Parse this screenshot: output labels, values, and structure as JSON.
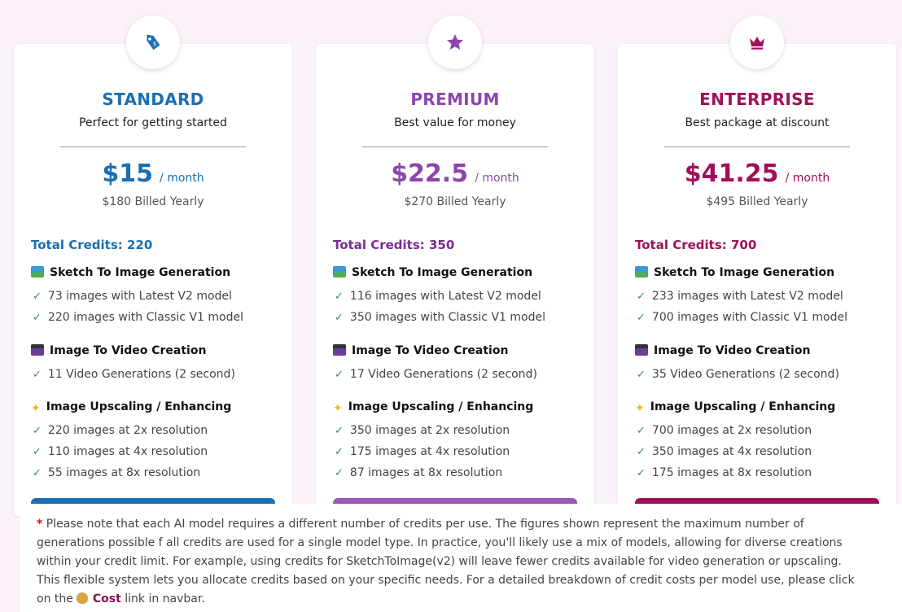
{
  "plans": [
    {
      "name": "STANDARD",
      "subtitle": "Perfect for getting started",
      "price": "$15",
      "per": "/ month",
      "billed": "$180 Billed Yearly",
      "credits": "Total Credits: 220",
      "color": "#1a6fb0",
      "icon": "tag-icon",
      "sketch_title": "Sketch To Image Generation",
      "sketch": [
        "73 images with Latest V2 model",
        "220 images with Classic V1 model"
      ],
      "video_title": "Image To Video Creation",
      "video": [
        "11 Video Generations (2 second)"
      ],
      "upscale_title": "Image Upscaling / Enhancing",
      "upscale": [
        "220 images at 2x resolution",
        "110 images at 4x resolution",
        "55 images at 8x resolution"
      ]
    },
    {
      "name": "PREMIUM",
      "subtitle": "Best value for money",
      "price": "$22.5",
      "per": "/ month",
      "billed": "$270 Billed Yearly",
      "credits": "Total Credits: 350",
      "color": "#8e44ad",
      "icon": "star-icon",
      "sketch_title": "Sketch To Image Generation",
      "sketch": [
        "116 images with Latest V2 model",
        "350 images with Classic V1 model"
      ],
      "video_title": "Image To Video Creation",
      "video": [
        "17 Video Generations (2 second)"
      ],
      "upscale_title": "Image Upscaling / Enhancing",
      "upscale": [
        "350 images at 2x resolution",
        "175 images at 4x resolution",
        "87 images at 8x resolution"
      ]
    },
    {
      "name": "ENTERPRISE",
      "subtitle": "Best package at discount",
      "price": "$41.25",
      "per": "/ month",
      "billed": "$495 Billed Yearly",
      "credits": "Total Credits: 700",
      "color": "#a0105a",
      "icon": "crown-icon",
      "sketch_title": "Sketch To Image Generation",
      "sketch": [
        "233 images with Latest V2 model",
        "700 images with Classic V1 model"
      ],
      "video_title": "Image To Video Creation",
      "video": [
        "35 Video Generations (2 second)"
      ],
      "upscale_title": "Image Upscaling / Enhancing",
      "upscale": [
        "700 images at 2x resolution",
        "350 images at 4x resolution",
        "175 images at 8x resolution"
      ]
    }
  ],
  "note": {
    "star": "*",
    "lines": [
      "Please note that each AI model requires a different number of credits per use. The figures shown represent the maximum number of",
      "generations possible f all credits are used for a single model type. In practice, you'll likely use a mix of models, allowing for diverse creations",
      "within your credit limit. For example, using credits for SketchToImage(v2) will leave fewer credits available for video generation or upscaling.",
      "This flexible system lets you allocate credits based on your specific needs. For a detailed breakdown of credit costs per model use, please click"
    ],
    "last_prefix": "on the",
    "cost_label": "Cost",
    "last_suffix": "link in navbar."
  }
}
